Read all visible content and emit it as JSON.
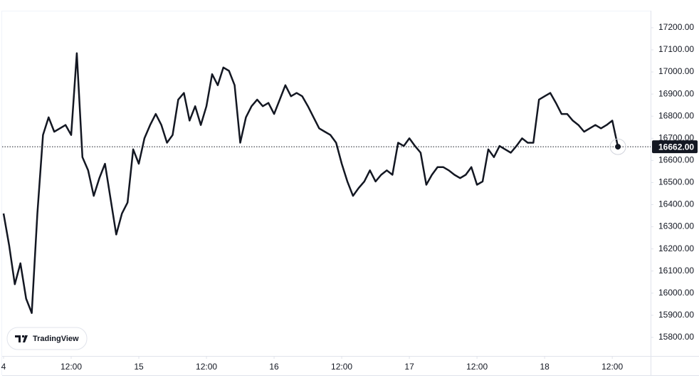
{
  "chart_data": {
    "type": "line",
    "color": "#131722",
    "watermark": "TradingView",
    "x": [
      0,
      1,
      2,
      3,
      4,
      5,
      6,
      7,
      8,
      9,
      10,
      11,
      12,
      13,
      14,
      15,
      16,
      17,
      18,
      19,
      20,
      21,
      22,
      23,
      24,
      25,
      26,
      27,
      28,
      29,
      30,
      31,
      32,
      33,
      34,
      35,
      36,
      37,
      38,
      39,
      40,
      41,
      42,
      43,
      44,
      45,
      46,
      47,
      48,
      49,
      50,
      51,
      52,
      53,
      54,
      55,
      56,
      57,
      58,
      59,
      60,
      61,
      62,
      63,
      64,
      65,
      66,
      67,
      68,
      69,
      70,
      71,
      72,
      73,
      74,
      75,
      76,
      77,
      78,
      79,
      80,
      81,
      82,
      83,
      84,
      85,
      86,
      87,
      88,
      89,
      90,
      91,
      92,
      93,
      94,
      95,
      96,
      97,
      98,
      99,
      100,
      101,
      102,
      103,
      104,
      105,
      106,
      107,
      108,
      109
    ],
    "values": [
      16360,
      16215,
      16040,
      16135,
      15975,
      15910,
      16360,
      16715,
      16795,
      16730,
      16745,
      16760,
      16715,
      17085,
      16615,
      16555,
      16440,
      16520,
      16585,
      16425,
      16265,
      16360,
      16410,
      16650,
      16585,
      16700,
      16760,
      16810,
      16760,
      16680,
      16715,
      16875,
      16905,
      16780,
      16845,
      16760,
      16845,
      16990,
      16940,
      17020,
      17005,
      16940,
      16680,
      16795,
      16845,
      16875,
      16845,
      16860,
      16810,
      16875,
      16940,
      16890,
      16905,
      16890,
      16845,
      16795,
      16745,
      16730,
      16715,
      16680,
      16585,
      16505,
      16440,
      16475,
      16505,
      16555,
      16505,
      16535,
      16555,
      16535,
      16680,
      16665,
      16700,
      16665,
      16635,
      16490,
      16535,
      16570,
      16570,
      16555,
      16535,
      16520,
      16535,
      16570,
      16490,
      16505,
      16650,
      16615,
      16665,
      16650,
      16635,
      16665,
      16700,
      16680,
      16680,
      16875,
      16890,
      16905,
      16860,
      16810,
      16810,
      16780,
      16760,
      16730,
      16745,
      16760,
      16745,
      16760,
      16780,
      16662
    ],
    "last_price": {
      "value": 16662,
      "label": "16662.00"
    },
    "xlim": [
      -0.25,
      114.8
    ],
    "xticks": [
      {
        "value": 0,
        "label": "4"
      },
      {
        "value": 12,
        "label": "12:00"
      },
      {
        "value": 24,
        "label": "15"
      },
      {
        "value": 36,
        "label": "12:00"
      },
      {
        "value": 48,
        "label": "16"
      },
      {
        "value": 60,
        "label": "12:00"
      },
      {
        "value": 72,
        "label": "17"
      },
      {
        "value": 84,
        "label": "12:00"
      },
      {
        "value": 96,
        "label": "18"
      },
      {
        "value": 108,
        "label": "12:00"
      }
    ],
    "ylim": [
      15716,
      17277
    ],
    "yticks": [
      {
        "value": 15800,
        "label": "15800.00"
      },
      {
        "value": 15900,
        "label": "15900.00"
      },
      {
        "value": 16000,
        "label": "16000.00"
      },
      {
        "value": 16100,
        "label": "16100.00"
      },
      {
        "value": 16200,
        "label": "16200.00"
      },
      {
        "value": 16300,
        "label": "16300.00"
      },
      {
        "value": 16400,
        "label": "16400.00"
      },
      {
        "value": 16500,
        "label": "16500.00"
      },
      {
        "value": 16600,
        "label": "16600.00"
      },
      {
        "value": 16700,
        "label": "16700.00"
      },
      {
        "value": 16800,
        "label": "16800.00"
      },
      {
        "value": 16900,
        "label": "16900.00"
      },
      {
        "value": 17000,
        "label": "17000.00"
      },
      {
        "value": 17100,
        "label": "17100.00"
      },
      {
        "value": 17200,
        "label": "17200.00"
      }
    ],
    "grid": false
  }
}
